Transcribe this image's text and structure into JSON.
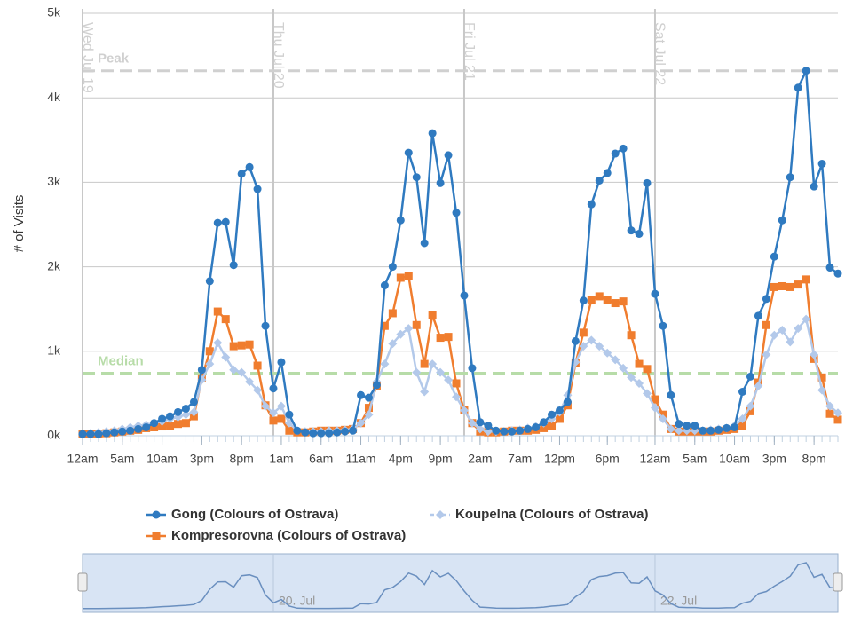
{
  "chart_data": {
    "type": "line",
    "y_axis_title": "# of Visits",
    "xlim": [
      0,
      95
    ],
    "xticks": [
      {
        "value": 0,
        "label": "12am"
      },
      {
        "value": 5,
        "label": "5am"
      },
      {
        "value": 10,
        "label": "10am"
      },
      {
        "value": 15,
        "label": "3pm"
      },
      {
        "value": 20,
        "label": "8pm"
      },
      {
        "value": 25,
        "label": "1am"
      },
      {
        "value": 30,
        "label": "6am"
      },
      {
        "value": 35,
        "label": "11am"
      },
      {
        "value": 40,
        "label": "4pm"
      },
      {
        "value": 45,
        "label": "9pm"
      },
      {
        "value": 50,
        "label": "2am"
      },
      {
        "value": 55,
        "label": "7am"
      },
      {
        "value": 60,
        "label": "12pm"
      },
      {
        "value": 66,
        "label": "6pm"
      },
      {
        "value": 72,
        "label": "12am"
      },
      {
        "value": 77,
        "label": "5am"
      },
      {
        "value": 82,
        "label": "10am"
      },
      {
        "value": 87,
        "label": "3pm"
      },
      {
        "value": 92,
        "label": "8pm"
      }
    ],
    "ylim": [
      0,
      5000
    ],
    "yticks": [
      {
        "value": 0,
        "label": "0k"
      },
      {
        "value": 1000,
        "label": "1k"
      },
      {
        "value": 2000,
        "label": "2k"
      },
      {
        "value": 3000,
        "label": "3k"
      },
      {
        "value": 4000,
        "label": "4k"
      },
      {
        "value": 5000,
        "label": "5k"
      }
    ],
    "grid": true,
    "x_plot_lines": [
      {
        "value": 0,
        "label": "Wed Jul 19"
      },
      {
        "value": 24,
        "label": "Thu Jul 20"
      },
      {
        "value": 48,
        "label": "Fri Jul 21"
      },
      {
        "value": 72,
        "label": "Sat Jul 22"
      }
    ],
    "y_plot_lines": [
      {
        "value": 4320,
        "label": "Peak",
        "color": "#d0d0d0"
      },
      {
        "value": 740,
        "label": "Median",
        "color": "#b7dca8"
      }
    ],
    "legend": "bottom",
    "series": [
      {
        "name": "Gong (Colours of Ostrava)",
        "color": "#2f7ac0",
        "marker": "circle",
        "values": [
          20,
          20,
          20,
          30,
          40,
          50,
          60,
          80,
          100,
          150,
          200,
          230,
          280,
          320,
          400,
          780,
          1830,
          2520,
          2530,
          2020,
          3100,
          3180,
          2920,
          1300,
          560,
          870,
          250,
          60,
          40,
          30,
          30,
          30,
          40,
          50,
          60,
          480,
          450,
          600,
          1780,
          2000,
          2550,
          3350,
          3060,
          2280,
          3580,
          2990,
          3320,
          2640,
          1660,
          800,
          160,
          120,
          60,
          50,
          50,
          60,
          80,
          100,
          160,
          250,
          300,
          400,
          1120,
          1600,
          2740,
          3020,
          3110,
          3340,
          3400,
          2430,
          2390,
          2990,
          1680,
          1300,
          480,
          140,
          120,
          120,
          60,
          60,
          70,
          90,
          100,
          520,
          700,
          1420,
          1620,
          2120,
          2550,
          3060,
          4120,
          4320,
          2950,
          3220,
          1990,
          1920
        ]
      },
      {
        "name": "Koupelna (Colours of Ostrava)",
        "color": "#b3c9ea",
        "marker": "diamond",
        "values": [
          20,
          30,
          40,
          50,
          60,
          80,
          100,
          120,
          130,
          150,
          170,
          200,
          220,
          250,
          280,
          660,
          850,
          1100,
          930,
          780,
          750,
          640,
          540,
          350,
          270,
          350,
          150,
          60,
          50,
          50,
          50,
          60,
          60,
          70,
          80,
          150,
          250,
          640,
          850,
          1090,
          1200,
          1270,
          750,
          520,
          850,
          750,
          660,
          460,
          300,
          150,
          80,
          50,
          50,
          50,
          60,
          70,
          90,
          110,
          150,
          200,
          280,
          480,
          870,
          1060,
          1130,
          1060,
          980,
          900,
          800,
          690,
          620,
          500,
          330,
          200,
          80,
          60,
          60,
          60,
          60,
          70,
          80,
          90,
          120,
          200,
          350,
          590,
          960,
          1190,
          1250,
          1110,
          1270,
          1380,
          960,
          540,
          350,
          270
        ]
      },
      {
        "name": "Kompresorovna (Colours of Ostrava)",
        "color": "#f07d2e",
        "marker": "square",
        "values": [
          20,
          20,
          20,
          30,
          40,
          50,
          60,
          70,
          90,
          100,
          110,
          120,
          140,
          150,
          230,
          680,
          1000,
          1470,
          1380,
          1060,
          1070,
          1080,
          830,
          360,
          180,
          200,
          60,
          40,
          40,
          50,
          60,
          60,
          60,
          70,
          80,
          150,
          330,
          590,
          1300,
          1450,
          1870,
          1890,
          1310,
          850,
          1430,
          1160,
          1170,
          620,
          300,
          150,
          50,
          40,
          40,
          50,
          60,
          60,
          60,
          70,
          90,
          120,
          200,
          360,
          860,
          1220,
          1610,
          1650,
          1610,
          1570,
          1590,
          1190,
          850,
          790,
          430,
          250,
          80,
          50,
          50,
          50,
          50,
          50,
          60,
          70,
          80,
          120,
          290,
          630,
          1310,
          1760,
          1770,
          1760,
          1790,
          1850,
          910,
          690,
          260,
          190
        ]
      }
    ],
    "navigator": {
      "series": 0,
      "xticks": [
        {
          "value": 24,
          "label": "20. Jul"
        },
        {
          "value": 72,
          "label": "22. Jul"
        }
      ]
    }
  }
}
